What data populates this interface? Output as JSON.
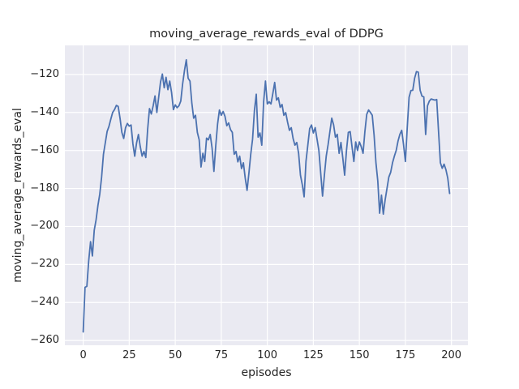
{
  "figure": {
    "title": "moving_average_rewards_eval of DDPG",
    "xlabel": "episodes",
    "ylabel": "moving_average_rewards_eval"
  },
  "chart_data": {
    "type": "line",
    "title": "moving_average_rewards_eval of DDPG",
    "xlabel": "episodes",
    "ylabel": "moving_average_rewards_eval",
    "x_ticks": [
      0,
      25,
      50,
      75,
      100,
      125,
      150,
      175,
      200
    ],
    "y_ticks": [
      -120,
      -140,
      -160,
      -180,
      -200,
      -220,
      -240,
      -260
    ],
    "xlim": [
      -9.95,
      208.95
    ],
    "ylim": [
      -262.5,
      -104.7
    ],
    "grid": true,
    "legend_position": "none",
    "colors": {
      "line": "#4c72b0",
      "plot_background": "#eaeaf2",
      "grid": "#ffffff",
      "text": "#262626",
      "figure_background": "#ffffff"
    },
    "series": [
      {
        "name": "moving_average_rewards_eval",
        "x_start": 0,
        "x_step": 1,
        "values": [
          -255.5,
          -232,
          -231.5,
          -218,
          -208,
          -215.5,
          -202,
          -196.5,
          -189,
          -183,
          -174,
          -162,
          -156,
          -150,
          -147.3,
          -143.5,
          -140,
          -138.5,
          -136.3,
          -136.8,
          -143,
          -150.5,
          -153.7,
          -148,
          -145.8,
          -147.2,
          -146.6,
          -156.5,
          -163,
          -156,
          -151.6,
          -158,
          -163,
          -160.5,
          -163.7,
          -149,
          -138,
          -140.8,
          -136.5,
          -131.3,
          -140,
          -132,
          -124,
          -119.8,
          -127,
          -121.5,
          -128,
          -123.5,
          -129.5,
          -138.5,
          -136,
          -137.5,
          -136.5,
          -134,
          -125,
          -118,
          -112.3,
          -122,
          -123.5,
          -135,
          -143,
          -141.5,
          -150.5,
          -154.4,
          -168.7,
          -161.5,
          -165.8,
          -153.5,
          -154.4,
          -151.6,
          -158.7,
          -171,
          -157.5,
          -146,
          -138.7,
          -141.5,
          -139.5,
          -142,
          -147,
          -145.5,
          -149,
          -150.5,
          -162,
          -160.5,
          -166,
          -163,
          -169.5,
          -166.5,
          -174.5,
          -181,
          -172,
          -162,
          -154,
          -139,
          -130.4,
          -153,
          -150.8,
          -157.2,
          -134.4,
          -123.5,
          -135.5,
          -134.4,
          -135.5,
          -130,
          -124.2,
          -133.5,
          -132.3,
          -137.3,
          -135.8,
          -141.5,
          -140.1,
          -145.1,
          -149.4,
          -148,
          -153.7,
          -157.2,
          -155.8,
          -161.5,
          -173,
          -178,
          -184.4,
          -165.8,
          -157.2,
          -148.5,
          -146.6,
          -150.8,
          -148,
          -154,
          -160,
          -172,
          -184,
          -173,
          -163,
          -157,
          -150,
          -143,
          -146.5,
          -153,
          -151.5,
          -161.5,
          -155.8,
          -164,
          -173,
          -160,
          -150.5,
          -150.1,
          -158,
          -165.8,
          -155.5,
          -160,
          -155.5,
          -158,
          -161.5,
          -150,
          -141,
          -138.7,
          -140,
          -141.5,
          -152,
          -166.5,
          -176,
          -193,
          -183.5,
          -193.5,
          -186,
          -180,
          -174,
          -171.5,
          -166.5,
          -163,
          -160,
          -155,
          -151.5,
          -149.4,
          -157,
          -165.8,
          -148,
          -132,
          -128.5,
          -128.3,
          -122,
          -118.5,
          -118.8,
          -128.3,
          -131.4,
          -131.8,
          -151.6,
          -136.5,
          -134,
          -132.9,
          -133.2,
          -133.5,
          -133.2,
          -150,
          -166.5,
          -169.4,
          -167.2,
          -170.1,
          -174.5,
          -182.6
        ]
      }
    ]
  }
}
